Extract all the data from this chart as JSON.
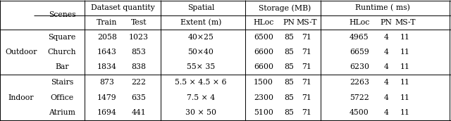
{
  "header1": {
    "scenes": "Scenes",
    "dataset": "Dataset quantity",
    "spatial": "Spatial",
    "storage": "Storage (MB)",
    "runtime": "Runtime ( ms)"
  },
  "header2": {
    "train": "Train",
    "test": "Test",
    "extent": "Extent (m)",
    "hloc": "HLoc",
    "pn": "PN",
    "mst": "MS-T"
  },
  "groups": [
    {
      "label": "Outdoor",
      "rows": [
        {
          "scene": "Square",
          "train": "2058",
          "test": "1023",
          "spatial": "40×25",
          "s_hloc": "6500",
          "s_pn": "85",
          "s_mst": "71",
          "r_hloc": "4965",
          "r_pn": "4",
          "r_mst": "11"
        },
        {
          "scene": "Church",
          "train": "1643",
          "test": "853",
          "spatial": "50×40",
          "s_hloc": "6600",
          "s_pn": "85",
          "s_mst": "71",
          "r_hloc": "6659",
          "r_pn": "4",
          "r_mst": "11"
        },
        {
          "scene": "Bar",
          "train": "1834",
          "test": "838",
          "spatial": "55× 35",
          "s_hloc": "6600",
          "s_pn": "85",
          "s_mst": "71",
          "r_hloc": "6230",
          "r_pn": "4",
          "r_mst": "11"
        }
      ]
    },
    {
      "label": "Indoor",
      "rows": [
        {
          "scene": "Stairs",
          "train": "873",
          "test": "222",
          "spatial": "5.5 × 4.5 × 6",
          "s_hloc": "1500",
          "s_pn": "85",
          "s_mst": "71",
          "r_hloc": "2263",
          "r_pn": "4",
          "r_mst": "11"
        },
        {
          "scene": "Office",
          "train": "1479",
          "test": "635",
          "spatial": "7.5 × 4",
          "s_hloc": "2300",
          "s_pn": "85",
          "s_mst": "71",
          "r_hloc": "5722",
          "r_pn": "4",
          "r_mst": "11"
        },
        {
          "scene": "Atrium",
          "train": "1694",
          "test": "441",
          "spatial": "30 × 50",
          "s_hloc": "5100",
          "s_pn": "85",
          "s_mst": "71",
          "r_hloc": "4500",
          "r_pn": "4",
          "r_mst": "11"
        }
      ]
    }
  ],
  "col_centers": {
    "group": 30,
    "scene": 88,
    "train": 152,
    "test": 197,
    "spatial": 285,
    "s_hloc": 374,
    "s_pn": 410,
    "s_mst": 435,
    "r_hloc": 510,
    "r_pn": 548,
    "r_mst": 575
  },
  "vlines": [
    120,
    228,
    348,
    455,
    630
  ],
  "fontsize": 7.8,
  "lw": 0.7
}
